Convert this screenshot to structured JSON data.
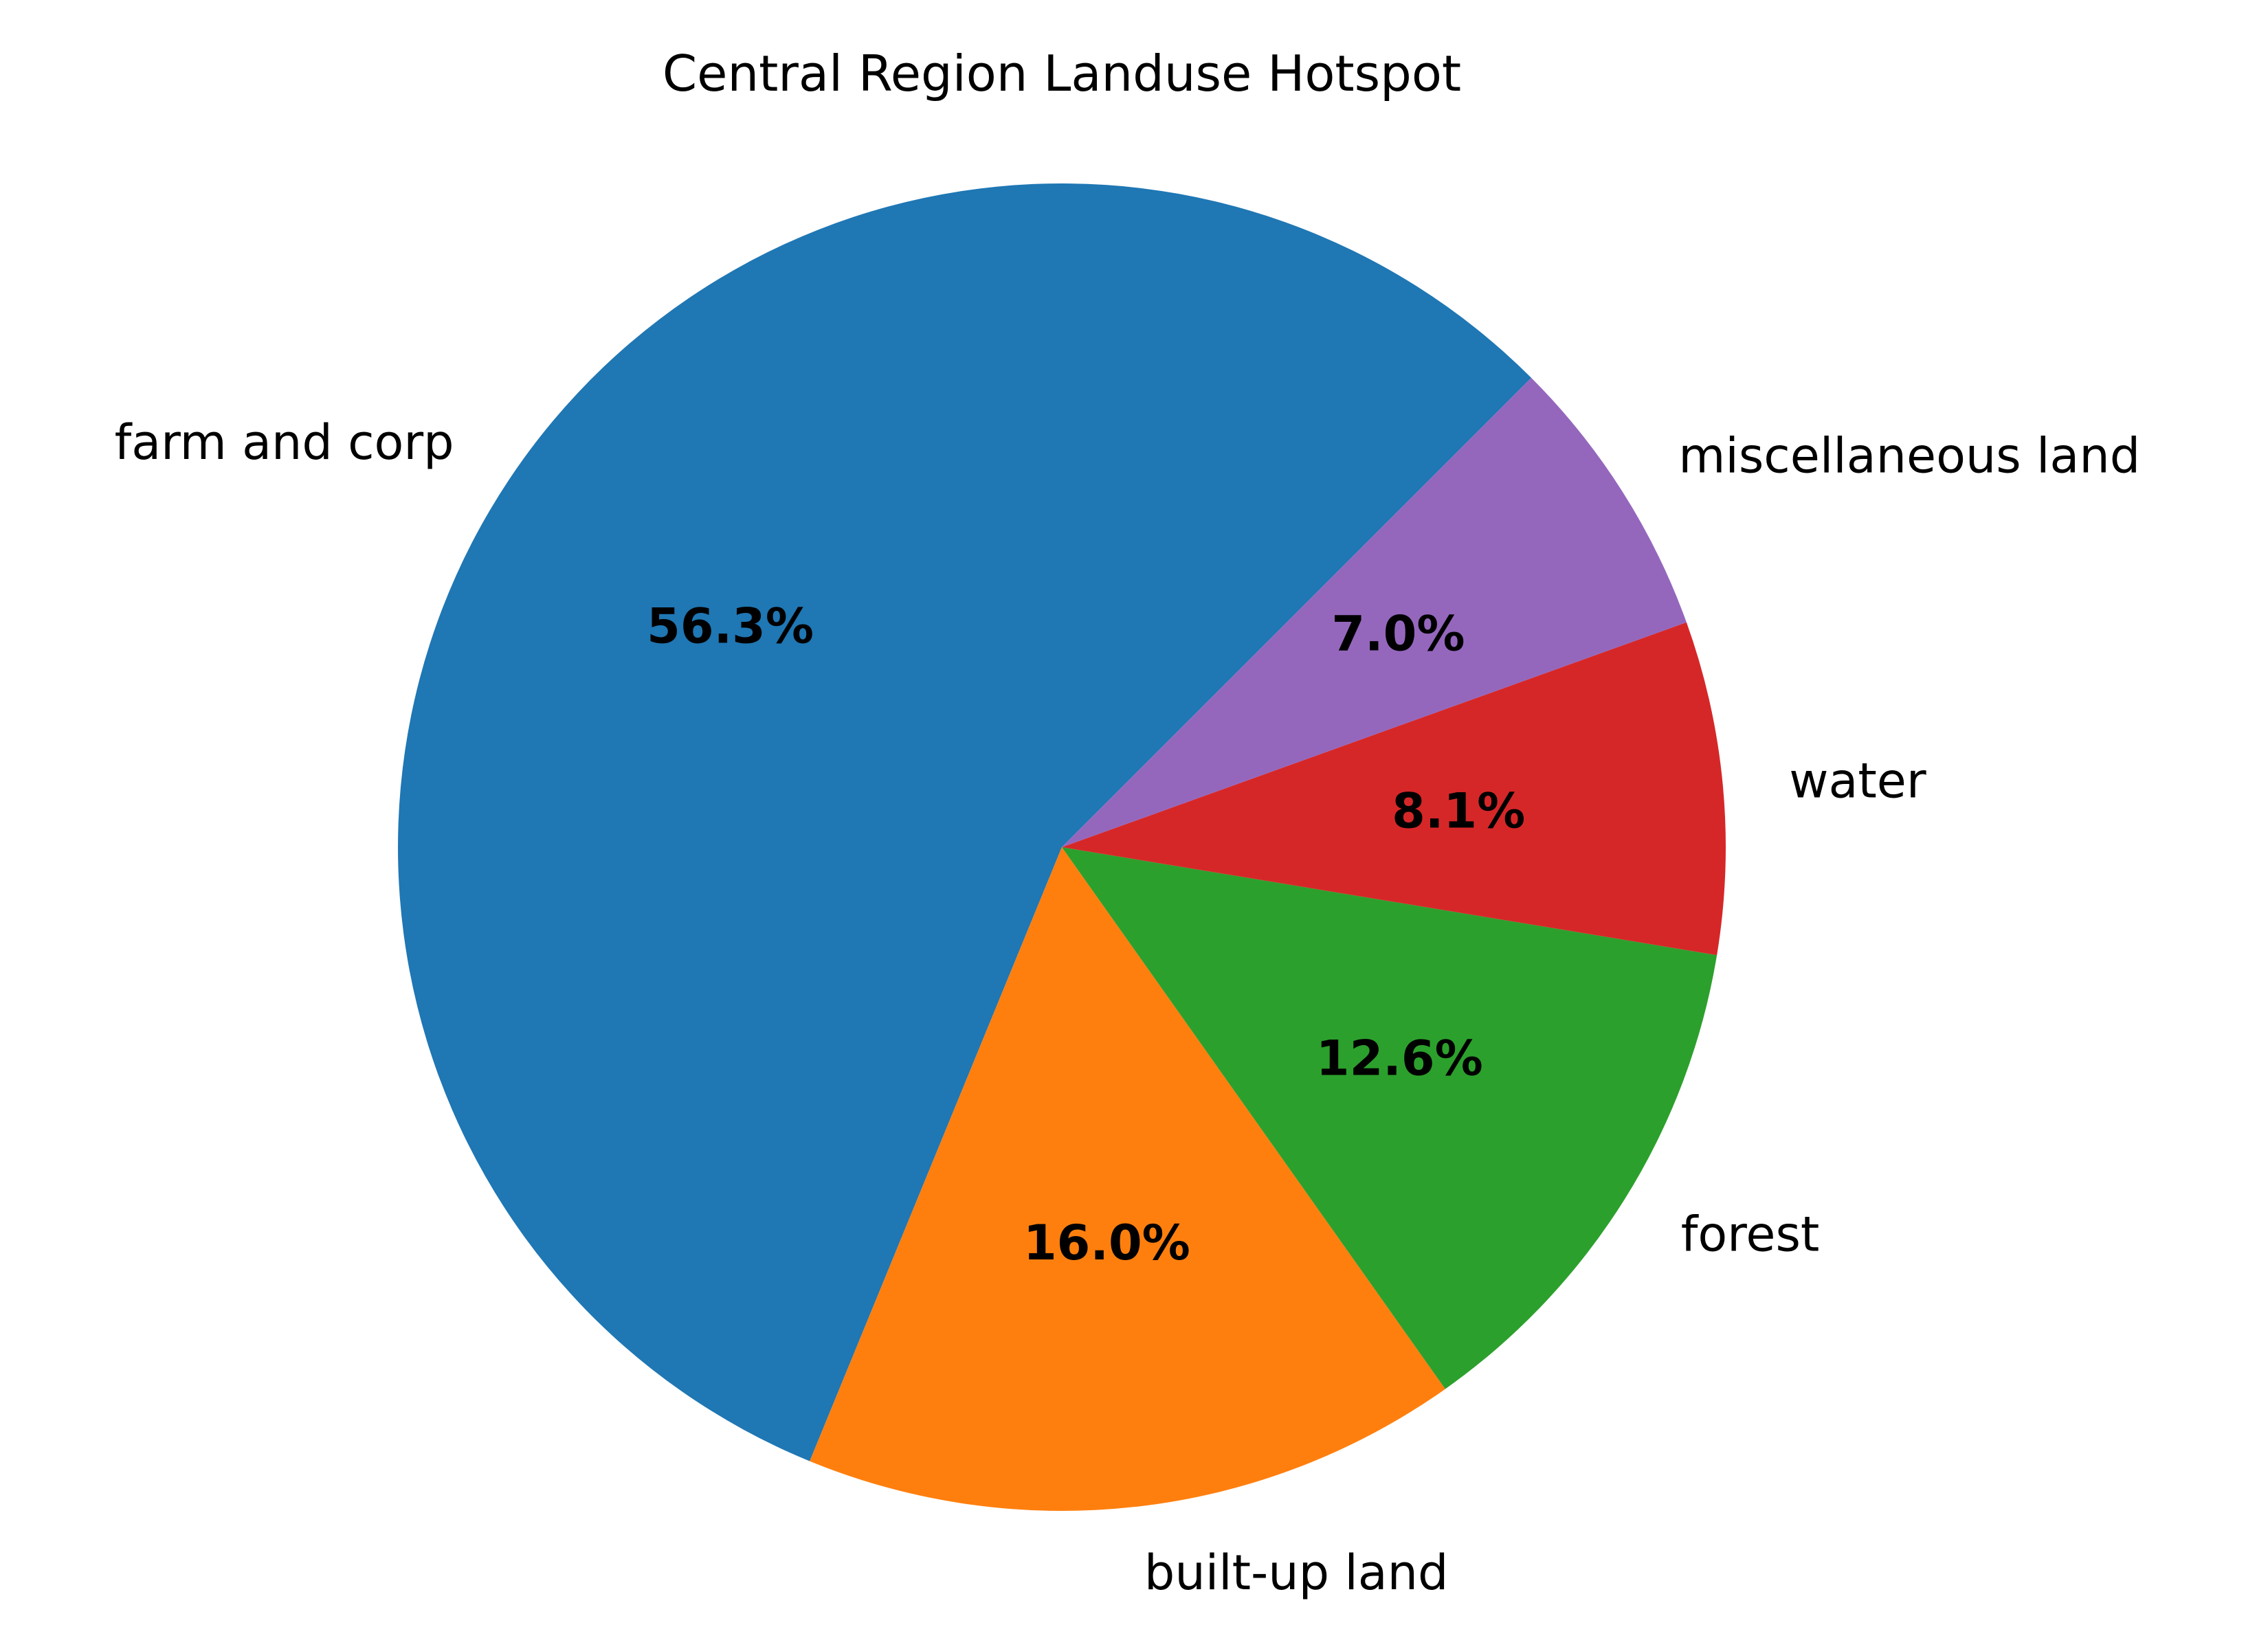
{
  "chart_data": {
    "type": "pie",
    "title": "Central Region Landuse Hotspot",
    "start_angle_deg": 45,
    "direction": "counterclockwise",
    "slices": [
      {
        "label": "farm and corp",
        "value": 56.3,
        "pct_label": "56.3%",
        "color": "#1f77b4"
      },
      {
        "label": "built-up land",
        "value": 16.0,
        "pct_label": "16.0%",
        "color": "#ff7f0e"
      },
      {
        "label": "forest",
        "value": 12.6,
        "pct_label": "12.6%",
        "color": "#2ca02c"
      },
      {
        "label": "water",
        "value": 8.1,
        "pct_label": "8.1%",
        "color": "#d62728"
      },
      {
        "label": "miscellaneous land",
        "value": 7.0,
        "pct_label": "7.0%",
        "color": "#9467bd"
      }
    ]
  }
}
